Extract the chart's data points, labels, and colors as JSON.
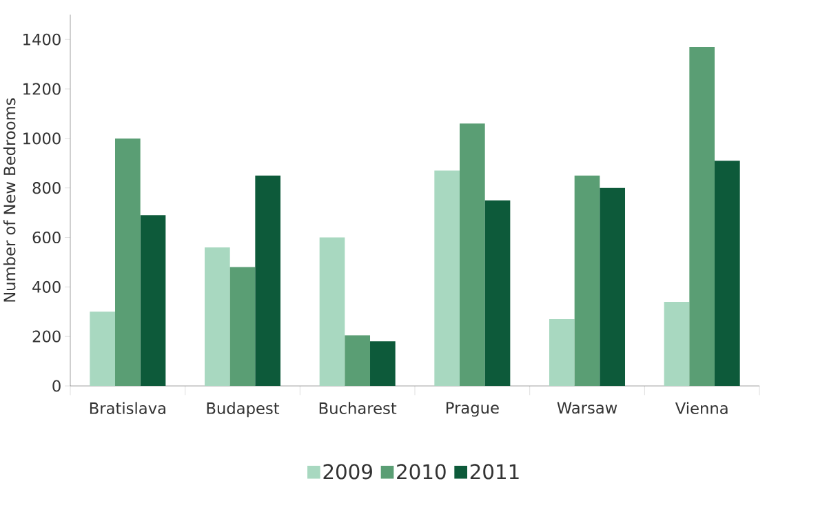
{
  "chart_data": {
    "type": "bar",
    "ylabel": "Number of New Bedrooms",
    "categories": [
      "Bratislava",
      "Budapest",
      "Bucharest",
      "Prague",
      "Warsaw",
      "Vienna"
    ],
    "series": [
      {
        "name": "2009",
        "color": "#a8d8c0",
        "values": [
          300,
          560,
          600,
          870,
          270,
          340
        ]
      },
      {
        "name": "2010",
        "color": "#5a9e74",
        "values": [
          1000,
          480,
          205,
          1060,
          850,
          1370
        ]
      },
      {
        "name": "2011",
        "color": "#0d5a3a",
        "values": [
          690,
          850,
          180,
          750,
          800,
          910
        ]
      }
    ],
    "ylim": [
      0,
      1500
    ],
    "yticks": [
      0,
      200,
      400,
      600,
      800,
      1000,
      1200,
      1400
    ],
    "grid": false,
    "legend": "bottom"
  }
}
